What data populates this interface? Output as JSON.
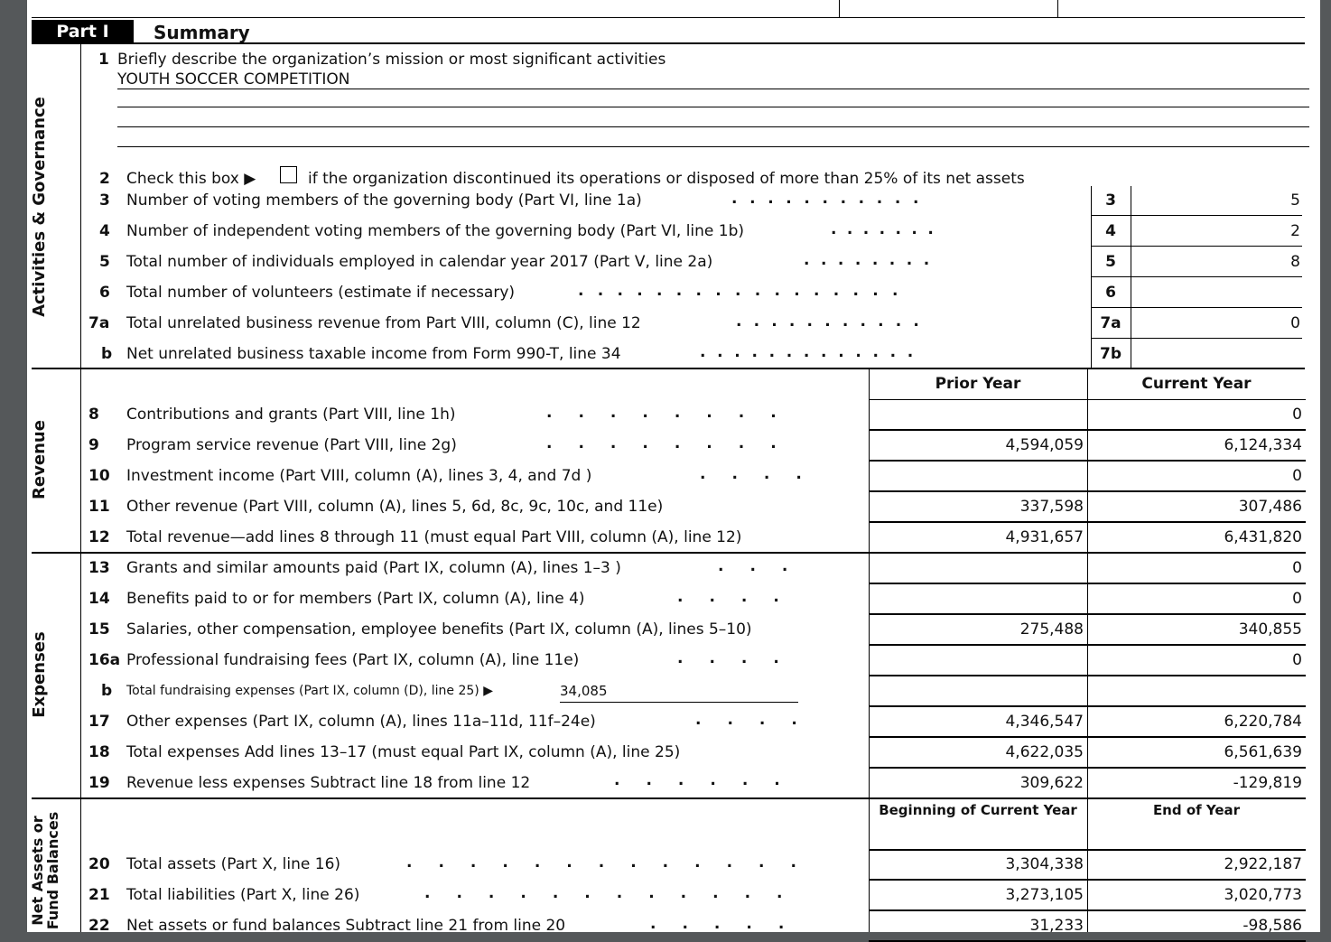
{
  "part": {
    "label": "Part I",
    "title": "Summary"
  },
  "side_labels": {
    "activities": "Activities & Governance",
    "revenue": "Revenue",
    "expenses": "Expenses",
    "net_assets_1": "Net Assets or",
    "net_assets_2": "Fund Balances"
  },
  "line1": {
    "num": "1",
    "label": "Briefly describe the organization’s mission or most significant activities",
    "value": "YOUTH SOCCER COMPETITION"
  },
  "line2": {
    "num": "2",
    "pre": "Check this box ▶",
    "post": "if the organization discontinued its operations or disposed of more than 25% of its net assets",
    "checked": false
  },
  "gov_lines": [
    {
      "num": "3",
      "label": "Number of voting members of the governing body (Part VI, line 1a)",
      "box": "3",
      "value": "5"
    },
    {
      "num": "4",
      "label": "Number of independent voting members of the governing body (Part VI, line 1b)",
      "box": "4",
      "value": "2"
    },
    {
      "num": "5",
      "label": "Total number of individuals employed in calendar year 2017 (Part V, line 2a)",
      "box": "5",
      "value": "8"
    },
    {
      "num": "6",
      "label": "Total number of volunteers (estimate if necessary)",
      "box": "6",
      "value": ""
    },
    {
      "num": "7a",
      "label": "Total unrelated business revenue from Part VIII, column (C), line 12",
      "box": "7a",
      "value": "0"
    },
    {
      "num": "b",
      "label": "Net unrelated business taxable income from Form 990-T, line 34",
      "box": "7b",
      "value": ""
    }
  ],
  "columns": {
    "prior": "Prior Year",
    "current": "Current Year",
    "begin": "Beginning of Current Year",
    "end": "End of Year"
  },
  "revenue_lines": [
    {
      "num": "8",
      "label": "Contributions and grants (Part VIII, line 1h)",
      "prior": "",
      "current": "0"
    },
    {
      "num": "9",
      "label": "Program service revenue (Part VIII, line 2g)",
      "prior": "4,594,059",
      "current": "6,124,334"
    },
    {
      "num": "10",
      "label": "Investment income (Part VIII, column (A), lines 3, 4, and 7d )",
      "prior": "",
      "current": "0"
    },
    {
      "num": "11",
      "label": "Other revenue (Part VIII, column (A), lines 5, 6d, 8c, 9c, 10c, and 11e)",
      "prior": "337,598",
      "current": "307,486"
    },
    {
      "num": "12",
      "label": "Total revenue—add lines 8 through 11 (must equal Part VIII, column (A), line 12)",
      "prior": "4,931,657",
      "current": "6,431,820"
    }
  ],
  "expense_lines": [
    {
      "num": "13",
      "label": "Grants and similar amounts paid (Part IX, column (A), lines 1–3 )",
      "prior": "",
      "current": "0"
    },
    {
      "num": "14",
      "label": "Benefits paid to or for members (Part IX, column (A), line 4)",
      "prior": "",
      "current": "0"
    },
    {
      "num": "15",
      "label": "Salaries, other compensation, employee benefits (Part IX, column (A), lines 5–10)",
      "prior": "275,488",
      "current": "340,855"
    },
    {
      "num": "16a",
      "label": "Professional fundraising fees (Part IX, column (A), line 11e)",
      "prior": "",
      "current": "0"
    },
    {
      "num": "b",
      "label": "Total fundraising expenses (Part IX, column (D), line 25) ▶",
      "inline_value": "34,085",
      "prior": "",
      "current": ""
    },
    {
      "num": "17",
      "label": "Other expenses (Part IX, column (A), lines 11a–11d, 11f–24e)",
      "prior": "4,346,547",
      "current": "6,220,784"
    },
    {
      "num": "18",
      "label": "Total expenses  Add lines 13–17 (must equal Part IX, column (A), line 25)",
      "prior": "4,622,035",
      "current": "6,561,639"
    },
    {
      "num": "19",
      "label": "Revenue less expenses  Subtract line 18 from line 12",
      "prior": "309,622",
      "current": "-129,819"
    }
  ],
  "net_lines": [
    {
      "num": "20",
      "label": "Total assets (Part X, line 16)",
      "prior": "3,304,338",
      "current": "2,922,187"
    },
    {
      "num": "21",
      "label": "Total liabilities (Part X, line 26)",
      "prior": "3,273,105",
      "current": "3,020,773"
    },
    {
      "num": "22",
      "label": "Net assets or fund balances  Subtract line 21 from line 20",
      "prior": "31,233",
      "current": "-98,586"
    }
  ]
}
